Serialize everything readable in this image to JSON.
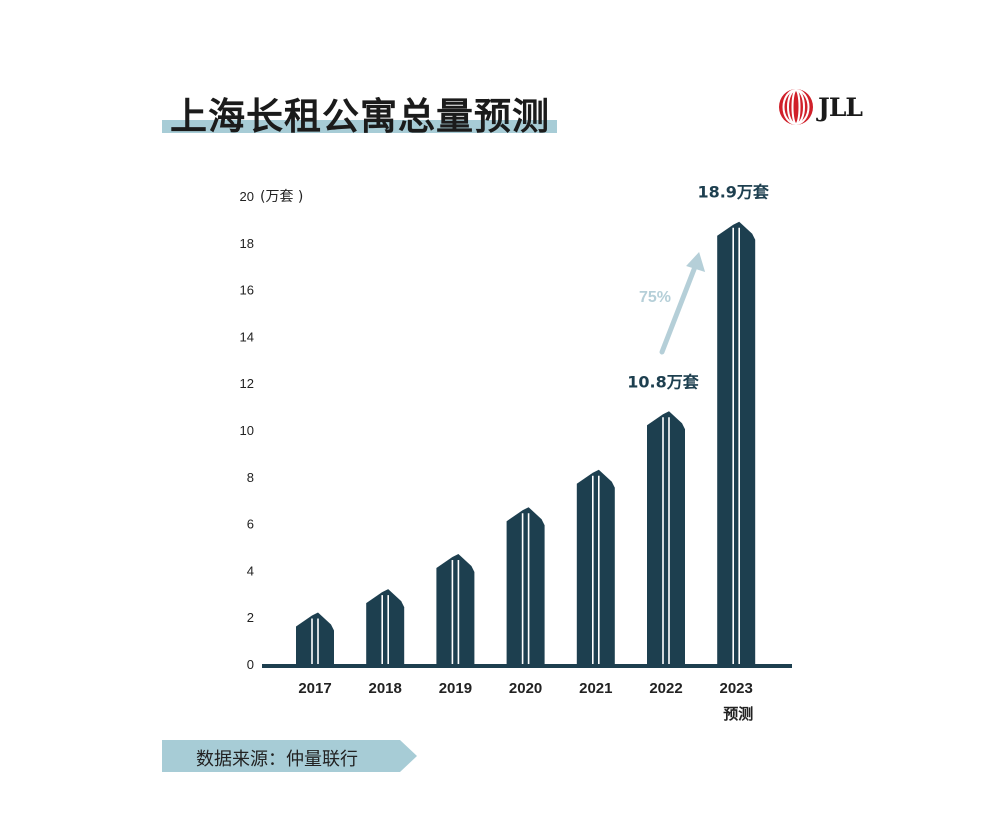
{
  "page": {
    "title": "上海长租公寓总量预测",
    "logo_text": "JLL",
    "source": "数据来源：仲量联行",
    "colors": {
      "bar": "#1d3f4f",
      "axis": "#1d3f4f",
      "accent": "#a7ccd6",
      "logo_red": "#d0202a"
    }
  },
  "chart_data": {
    "type": "bar",
    "categories": [
      "2017",
      "2018",
      "2019",
      "2020",
      "2021",
      "2022",
      "2023"
    ],
    "category_sublabels": [
      "",
      "",
      "",
      "",
      "",
      "",
      "预测"
    ],
    "values": [
      2.2,
      3.2,
      4.7,
      6.7,
      8.3,
      10.8,
      18.9
    ],
    "ylabel": "(万套 )",
    "ylim": [
      0,
      20
    ],
    "yticks": [
      0,
      2,
      4,
      6,
      8,
      10,
      12,
      14,
      16,
      18,
      20
    ],
    "grid": false,
    "data_labels": [
      {
        "category": "2022",
        "text": "10.8万套"
      },
      {
        "category": "2023",
        "text": "18.9万套"
      }
    ],
    "annotation": {
      "text": "75%",
      "from": "2022",
      "to": "2023"
    }
  }
}
